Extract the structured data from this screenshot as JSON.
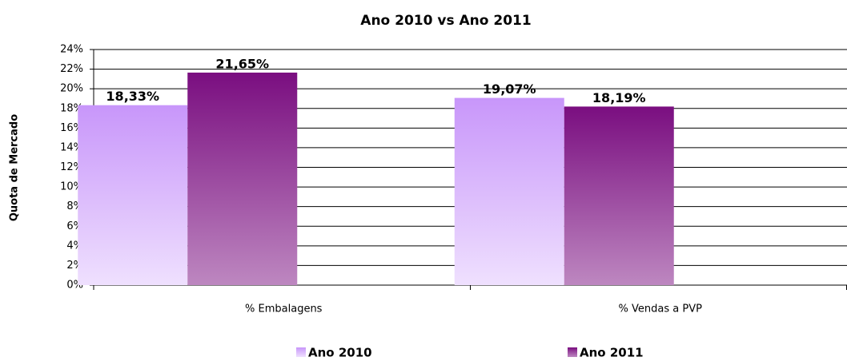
{
  "chart_data": {
    "type": "bar",
    "title": "Ano 2010   vs  Ano 2011",
    "y_label": "Quota de Mercado",
    "categories": [
      "% Embalagens",
      "% Vendas a PVP"
    ],
    "series": [
      {
        "name": "Ano 2010",
        "color": "#c896fa",
        "values": [
          18.33,
          19.07
        ],
        "value_labels": [
          "18,33%",
          "19,07%"
        ]
      },
      {
        "name": "Ano 2011",
        "color": "#7a0e80",
        "values": [
          21.65,
          18.19
        ],
        "value_labels": [
          "21,65%",
          "18,19%"
        ]
      }
    ],
    "ylim": [
      0,
      24
    ],
    "yticks": [
      {
        "value": 0,
        "label": "0%"
      },
      {
        "value": 2,
        "label": "2%"
      },
      {
        "value": 4,
        "label": "4%"
      },
      {
        "value": 6,
        "label": "6%"
      },
      {
        "value": 8,
        "label": "8%"
      },
      {
        "value": 10,
        "label": "10%"
      },
      {
        "value": 12,
        "label": "12%"
      },
      {
        "value": 14,
        "label": "14%"
      },
      {
        "value": 16,
        "label": "16%"
      },
      {
        "value": 18,
        "label": "18%"
      },
      {
        "value": 20,
        "label": "20%"
      },
      {
        "value": 22,
        "label": "22%"
      },
      {
        "value": 24,
        "label": "24%"
      }
    ],
    "grid": true,
    "legend": "bottom"
  }
}
